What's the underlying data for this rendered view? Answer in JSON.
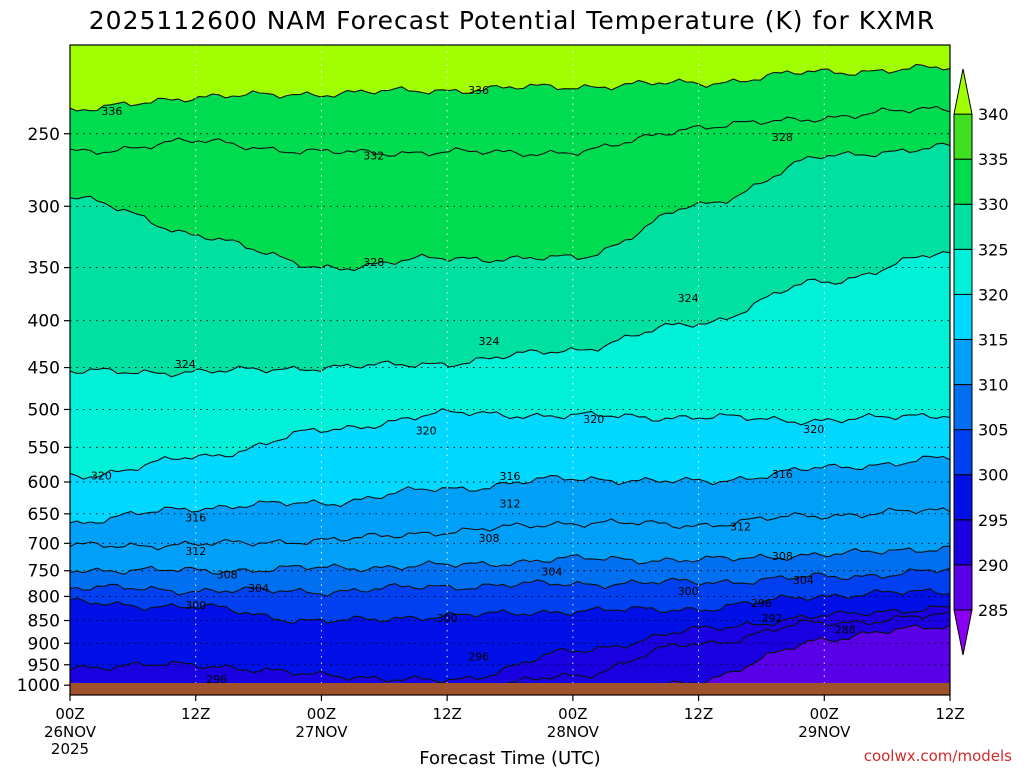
{
  "chart_data": {
    "type": "contour",
    "title": "2025112600 NAM Forecast Potential Temperature (K) for KXMR",
    "xlabel": "Forecast Time (UTC)",
    "ylabel": "",
    "credit": "coolwx.com/models",
    "x_ticks": [
      {
        "hours": 0,
        "label": "00Z",
        "sub1": "26NOV",
        "sub2": "2025"
      },
      {
        "hours": 12,
        "label": "12Z",
        "sub1": "",
        "sub2": ""
      },
      {
        "hours": 24,
        "label": "00Z",
        "sub1": "27NOV",
        "sub2": ""
      },
      {
        "hours": 36,
        "label": "12Z",
        "sub1": "",
        "sub2": ""
      },
      {
        "hours": 48,
        "label": "00Z",
        "sub1": "28NOV",
        "sub2": ""
      },
      {
        "hours": 60,
        "label": "12Z",
        "sub1": "",
        "sub2": ""
      },
      {
        "hours": 72,
        "label": "00Z",
        "sub1": "29NOV",
        "sub2": ""
      },
      {
        "hours": 84,
        "label": "12Z",
        "sub1": "",
        "sub2": ""
      }
    ],
    "xlim": [
      0,
      84
    ],
    "y_ticks": [
      "250",
      "300",
      "350",
      "400",
      "450",
      "500",
      "550",
      "600",
      "650",
      "700",
      "750",
      "800",
      "850",
      "900",
      "950",
      "1000"
    ],
    "ylim": [
      200,
      1025
    ],
    "y_scale": "log",
    "colorbar": {
      "levels": [
        285,
        290,
        295,
        300,
        305,
        310,
        315,
        320,
        325,
        330,
        335,
        340
      ],
      "labels": [
        "285",
        "290",
        "295",
        "300",
        "305",
        "310",
        "315",
        "320",
        "325",
        "330",
        "335",
        "340"
      ],
      "colors": [
        "#8a00f0",
        "#5a00e8",
        "#1a00e0",
        "#0010e6",
        "#0040f0",
        "#0070f0",
        "#00a0f8",
        "#00d8ff",
        "#00f0d8",
        "#00e0a0",
        "#00dc50",
        "#40e020",
        "#a0ff00"
      ]
    },
    "isotherms": [
      {
        "theta": 336,
        "p": [
          236,
          228,
          226,
          224,
          222,
          220,
          214,
          212
        ]
      },
      {
        "theta": 332,
        "p": [
          262,
          255,
          262,
          262,
          262,
          246,
          240,
          234
        ]
      },
      {
        "theta": 328,
        "p": [
          292,
          322,
          350,
          342,
          342,
          300,
          265,
          258
        ]
      },
      {
        "theta": 324,
        "p": [
          455,
          455,
          450,
          445,
          430,
          402,
          362,
          338
        ]
      },
      {
        "theta": 320,
        "p": [
          592,
          565,
          528,
          505,
          508,
          510,
          514,
          506
        ]
      },
      {
        "theta": 316,
        "p": [
          665,
          640,
          632,
          610,
          595,
          600,
          580,
          565
        ]
      },
      {
        "theta": 312,
        "p": [
          705,
          702,
          695,
          680,
          665,
          668,
          652,
          645
        ]
      },
      {
        "theta": 308,
        "p": [
          748,
          750,
          745,
          740,
          728,
          730,
          720,
          708
        ]
      },
      {
        "theta": 304,
        "p": [
          782,
          788,
          790,
          780,
          775,
          772,
          762,
          750
        ]
      },
      {
        "theta": 300,
        "p": [
          812,
          822,
          852,
          840,
          830,
          825,
          798,
          790
        ]
      },
      {
        "theta": 296,
        "p": [
          955,
          950,
          975,
          990,
          920,
          870,
          840,
          822
        ]
      },
      {
        "theta": 292,
        "p": [
          1025,
          1025,
          1025,
          1025,
          975,
          900,
          855,
          840
        ]
      },
      {
        "theta": 288,
        "p": [
          1025,
          1025,
          1025,
          1025,
          1025,
          990,
          890,
          860
        ]
      }
    ],
    "contour_labels": [
      {
        "text": "336",
        "h": 4,
        "p": 236
      },
      {
        "text": "336",
        "h": 39,
        "p": 224
      },
      {
        "text": "332",
        "h": 29,
        "p": 264
      },
      {
        "text": "328",
        "h": 29,
        "p": 345
      },
      {
        "text": "328",
        "h": 68,
        "p": 252
      },
      {
        "text": "324",
        "h": 11,
        "p": 446
      },
      {
        "text": "324",
        "h": 40,
        "p": 421
      },
      {
        "text": "324",
        "h": 59,
        "p": 378
      },
      {
        "text": "320",
        "h": 3,
        "p": 590
      },
      {
        "text": "320",
        "h": 34,
        "p": 527
      },
      {
        "text": "320",
        "h": 50,
        "p": 512
      },
      {
        "text": "320",
        "h": 71,
        "p": 525
      },
      {
        "text": "316",
        "h": 12,
        "p": 656
      },
      {
        "text": "316",
        "h": 42,
        "p": 591
      },
      {
        "text": "316",
        "h": 68,
        "p": 588
      },
      {
        "text": "312",
        "h": 12,
        "p": 714
      },
      {
        "text": "312",
        "h": 42,
        "p": 633
      },
      {
        "text": "312",
        "h": 64,
        "p": 671
      },
      {
        "text": "308",
        "h": 15,
        "p": 757
      },
      {
        "text": "308",
        "h": 40,
        "p": 691
      },
      {
        "text": "308",
        "h": 68,
        "p": 723
      },
      {
        "text": "304",
        "h": 18,
        "p": 783
      },
      {
        "text": "304",
        "h": 46,
        "p": 751
      },
      {
        "text": "304",
        "h": 70,
        "p": 768
      },
      {
        "text": "300",
        "h": 12,
        "p": 817
      },
      {
        "text": "300",
        "h": 36,
        "p": 845
      },
      {
        "text": "300",
        "h": 59,
        "p": 789
      },
      {
        "text": "296",
        "h": 66,
        "p": 813
      },
      {
        "text": "296",
        "h": 39,
        "p": 930
      },
      {
        "text": "296",
        "h": 14,
        "p": 985
      },
      {
        "text": "292",
        "h": 67,
        "p": 845
      },
      {
        "text": "288",
        "h": 74,
        "p": 869
      }
    ]
  }
}
